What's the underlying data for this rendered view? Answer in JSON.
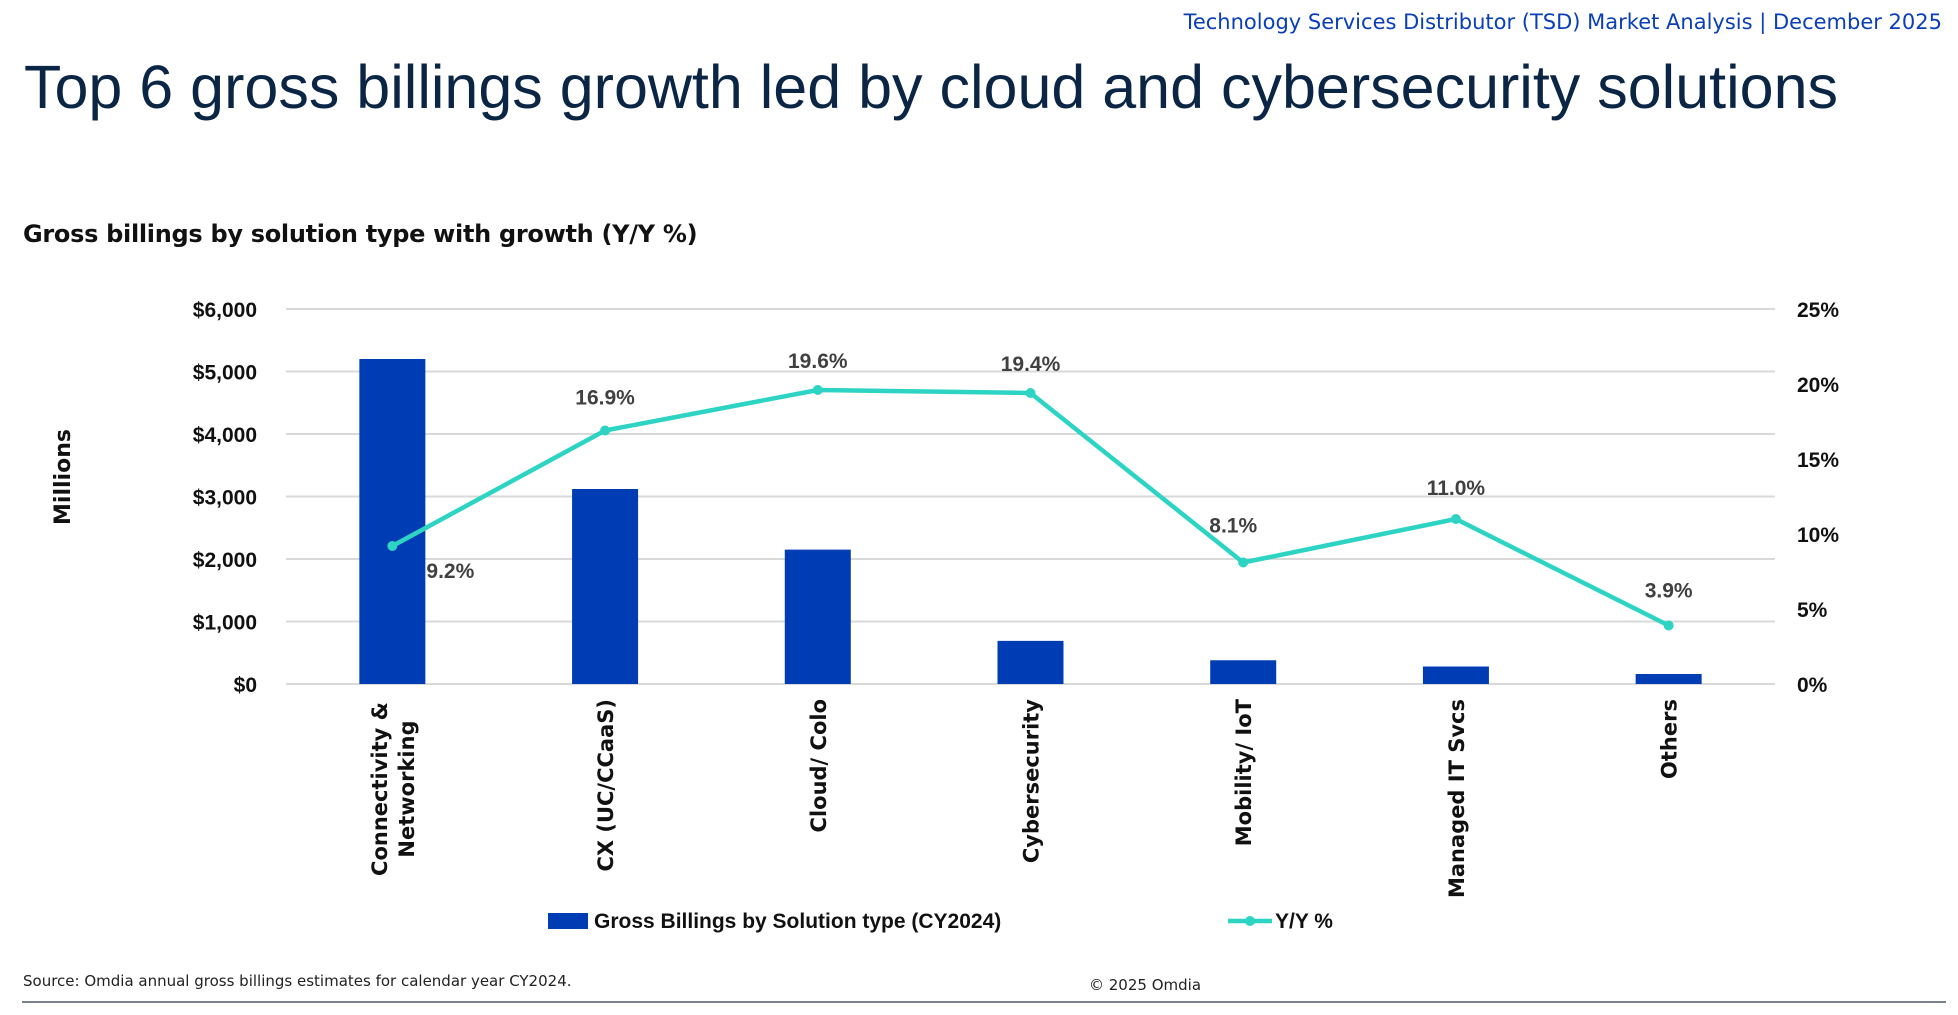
{
  "header": {
    "right_text": "Technology Services Distributor (TSD) Market Analysis | December 2025"
  },
  "title": "Top 6 gross billings growth led by cloud and cybersecurity solutions",
  "footer": {
    "source": "Source: Omdia annual gross billings estimates for calendar year CY2024.",
    "copyright": "© 2025 Omdia"
  },
  "chart_data": {
    "type": "bar+line",
    "title": "Gross billings by solution type with growth (Y/Y %)",
    "ylabel": "Millions",
    "categories": [
      "Connectivity & Networking",
      "CX (UC/CCaaS)",
      "Cloud/ Colo",
      "Cybersecurity",
      "Mobility/ IoT",
      "Managed IT Svcs",
      "Others"
    ],
    "category_lines": [
      [
        "Connectivity &",
        "Networking"
      ],
      [
        "CX (UC/CCaaS)"
      ],
      [
        "Cloud/ Colo"
      ],
      [
        "Cybersecurity"
      ],
      [
        "Mobility/ IoT"
      ],
      [
        "Managed IT Svcs"
      ],
      [
        "Others"
      ]
    ],
    "series": [
      {
        "name": "Gross Billings by Solution type (CY2024)",
        "type": "bar",
        "axis": "left",
        "color": "#003cb3",
        "values": [
          5200,
          3120,
          2150,
          690,
          380,
          280,
          160
        ]
      },
      {
        "name": "Y/Y %",
        "type": "line",
        "axis": "right",
        "color": "#2dd4c4",
        "values": [
          9.2,
          16.9,
          19.6,
          19.4,
          8.1,
          11.0,
          3.9
        ],
        "data_labels": [
          "9.2%",
          "16.9%",
          "19.6%",
          "19.4%",
          "8.1%",
          "11.0%",
          "3.9%"
        ]
      }
    ],
    "y_left": {
      "range": [
        0,
        6000
      ],
      "ticks": [
        "$0",
        "$1,000",
        "$2,000",
        "$3,000",
        "$4,000",
        "$5,000",
        "$6,000"
      ]
    },
    "y_right": {
      "range": [
        0,
        25
      ],
      "ticks": [
        "0%",
        "5%",
        "10%",
        "15%",
        "20%",
        "25%"
      ]
    },
    "grid": true,
    "legend": "bottom"
  }
}
